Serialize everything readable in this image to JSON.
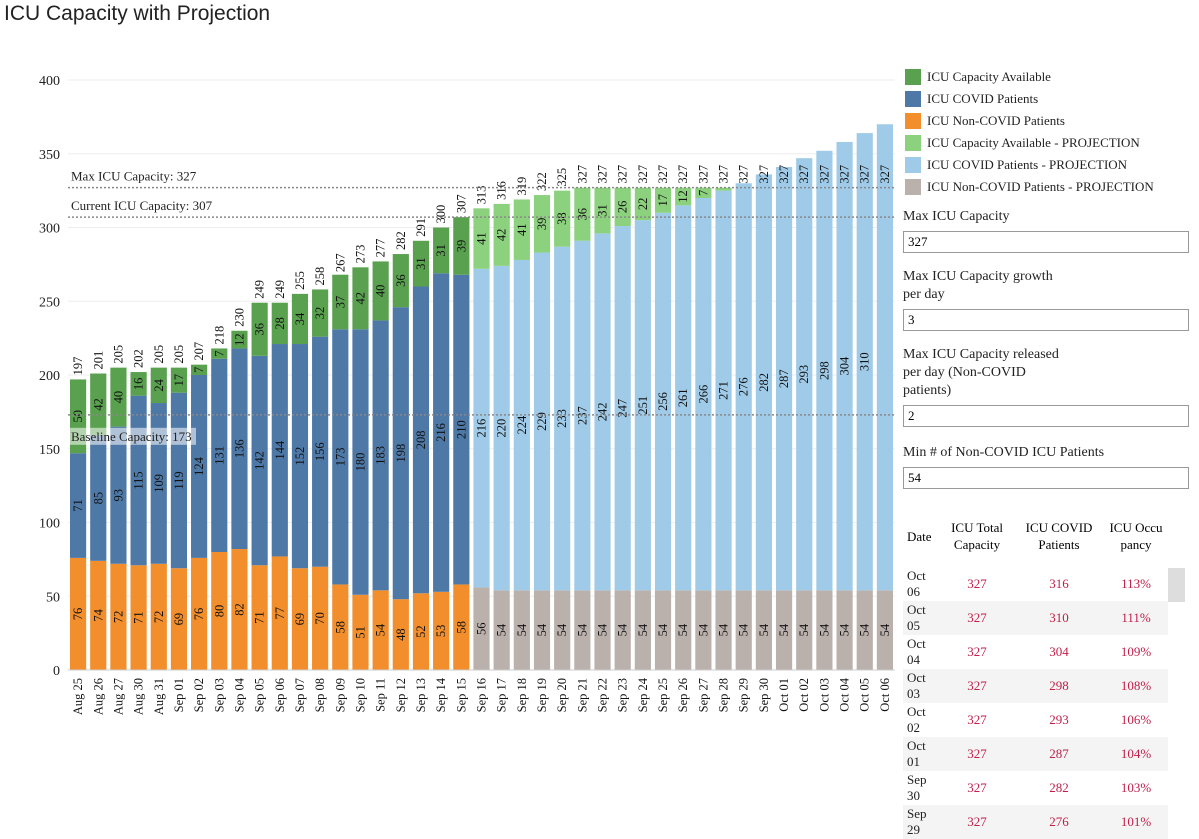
{
  "title": "ICU Capacity with Projection",
  "chart_data": {
    "type": "bar",
    "stacked": true,
    "title": "ICU Capacity with Projection",
    "ylim": [
      0,
      400
    ],
    "yticks": [
      0,
      50,
      100,
      150,
      200,
      250,
      300,
      350,
      400
    ],
    "grid": true,
    "legend_position": "right",
    "colors": {
      "available": "#59a14f",
      "covid": "#4e79a7",
      "noncovid": "#f28e2b",
      "available_proj": "#8cd17d",
      "covid_proj": "#a0cbe8",
      "noncovid_proj": "#bab0ac"
    },
    "legend": [
      "ICU Capacity Available",
      "ICU COVID Patients",
      "ICU Non-COVID Patients",
      "ICU Capacity Available - PROJECTION",
      "ICU COVID Patients - PROJECTION",
      "ICU Non-COVID Patients - PROJECTION"
    ],
    "reference_lines": [
      {
        "label": "Max ICU Capacity: 327",
        "value": 327
      },
      {
        "label": "Current ICU Capacity: 307",
        "value": 307
      },
      {
        "label": "Baseline Capacity: 173",
        "value": 173
      }
    ],
    "categories": [
      "Aug 25",
      "Aug 26",
      "Aug 27",
      "Aug 30",
      "Aug 31",
      "Sep 01",
      "Sep 02",
      "Sep 03",
      "Sep 04",
      "Sep 05",
      "Sep 06",
      "Sep 07",
      "Sep 08",
      "Sep 09",
      "Sep 10",
      "Sep 11",
      "Sep 12",
      "Sep 13",
      "Sep 14",
      "Sep 15",
      "Sep 16",
      "Sep 17",
      "Sep 18",
      "Sep 19",
      "Sep 20",
      "Sep 21",
      "Sep 22",
      "Sep 23",
      "Sep 24",
      "Sep 25",
      "Sep 26",
      "Sep 27",
      "Sep 28",
      "Sep 29",
      "Sep 30",
      "Oct 01",
      "Oct 02",
      "Oct 03",
      "Oct 04",
      "Oct 05",
      "Oct 06"
    ],
    "projection_start_index": 20,
    "noncovid": [
      76,
      74,
      72,
      71,
      72,
      69,
      76,
      80,
      82,
      71,
      77,
      69,
      70,
      58,
      51,
      54,
      48,
      52,
      53,
      58,
      56,
      54,
      54,
      54,
      54,
      54,
      54,
      54,
      54,
      54,
      54,
      54,
      54,
      54,
      54,
      54,
      54,
      54,
      54,
      54,
      54
    ],
    "covid": [
      71,
      85,
      93,
      115,
      109,
      119,
      124,
      131,
      136,
      142,
      144,
      152,
      156,
      173,
      180,
      183,
      198,
      208,
      216,
      210,
      216,
      220,
      224,
      229,
      233,
      237,
      242,
      247,
      251,
      256,
      261,
      266,
      271,
      276,
      282,
      287,
      293,
      298,
      304,
      310,
      316
    ],
    "available": [
      50,
      42,
      40,
      16,
      24,
      17,
      7,
      7,
      12,
      36,
      28,
      34,
      32,
      37,
      42,
      40,
      36,
      31,
      31,
      39,
      41,
      42,
      41,
      39,
      38,
      36,
      31,
      26,
      22,
      17,
      12,
      7,
      2,
      0,
      0,
      0,
      0,
      0,
      0,
      0,
      0
    ],
    "total_capacity": [
      197,
      201,
      205,
      202,
      205,
      205,
      207,
      218,
      230,
      249,
      249,
      255,
      258,
      267,
      273,
      277,
      282,
      291,
      300,
      307,
      313,
      316,
      319,
      322,
      325,
      327,
      327,
      327,
      327,
      327,
      327,
      327,
      327,
      327,
      327,
      327,
      327,
      327,
      327,
      327,
      327
    ]
  },
  "legend": [
    "ICU Capacity Available",
    "ICU COVID Patients",
    "ICU Non-COVID Patients",
    "ICU Capacity Available - PROJECTION",
    "ICU COVID Patients - PROJECTION",
    "ICU Non-COVID Patients - PROJECTION"
  ],
  "params": [
    {
      "label": "Max ICU Capacity",
      "value": "327"
    },
    {
      "label": "Max ICU Capacity growth per day",
      "value": "3"
    },
    {
      "label": "Max ICU Capacity released per day (Non-COVID patients)",
      "value": "2"
    },
    {
      "label": "Min # of Non-COVID ICU Patients",
      "value": "54"
    }
  ],
  "table": {
    "headers": [
      "Date",
      "ICU Total Capacity",
      "ICU COVID Patients",
      "ICU Occu pancy"
    ],
    "rows": [
      [
        "Oct 06",
        "327",
        "316",
        "113%"
      ],
      [
        "Oct 05",
        "327",
        "310",
        "111%"
      ],
      [
        "Oct 04",
        "327",
        "304",
        "109%"
      ],
      [
        "Oct 03",
        "327",
        "298",
        "108%"
      ],
      [
        "Oct 02",
        "327",
        "293",
        "106%"
      ],
      [
        "Oct 01",
        "327",
        "287",
        "104%"
      ],
      [
        "Sep 30",
        "327",
        "282",
        "103%"
      ],
      [
        "Sep 29",
        "327",
        "276",
        "101%"
      ]
    ]
  }
}
